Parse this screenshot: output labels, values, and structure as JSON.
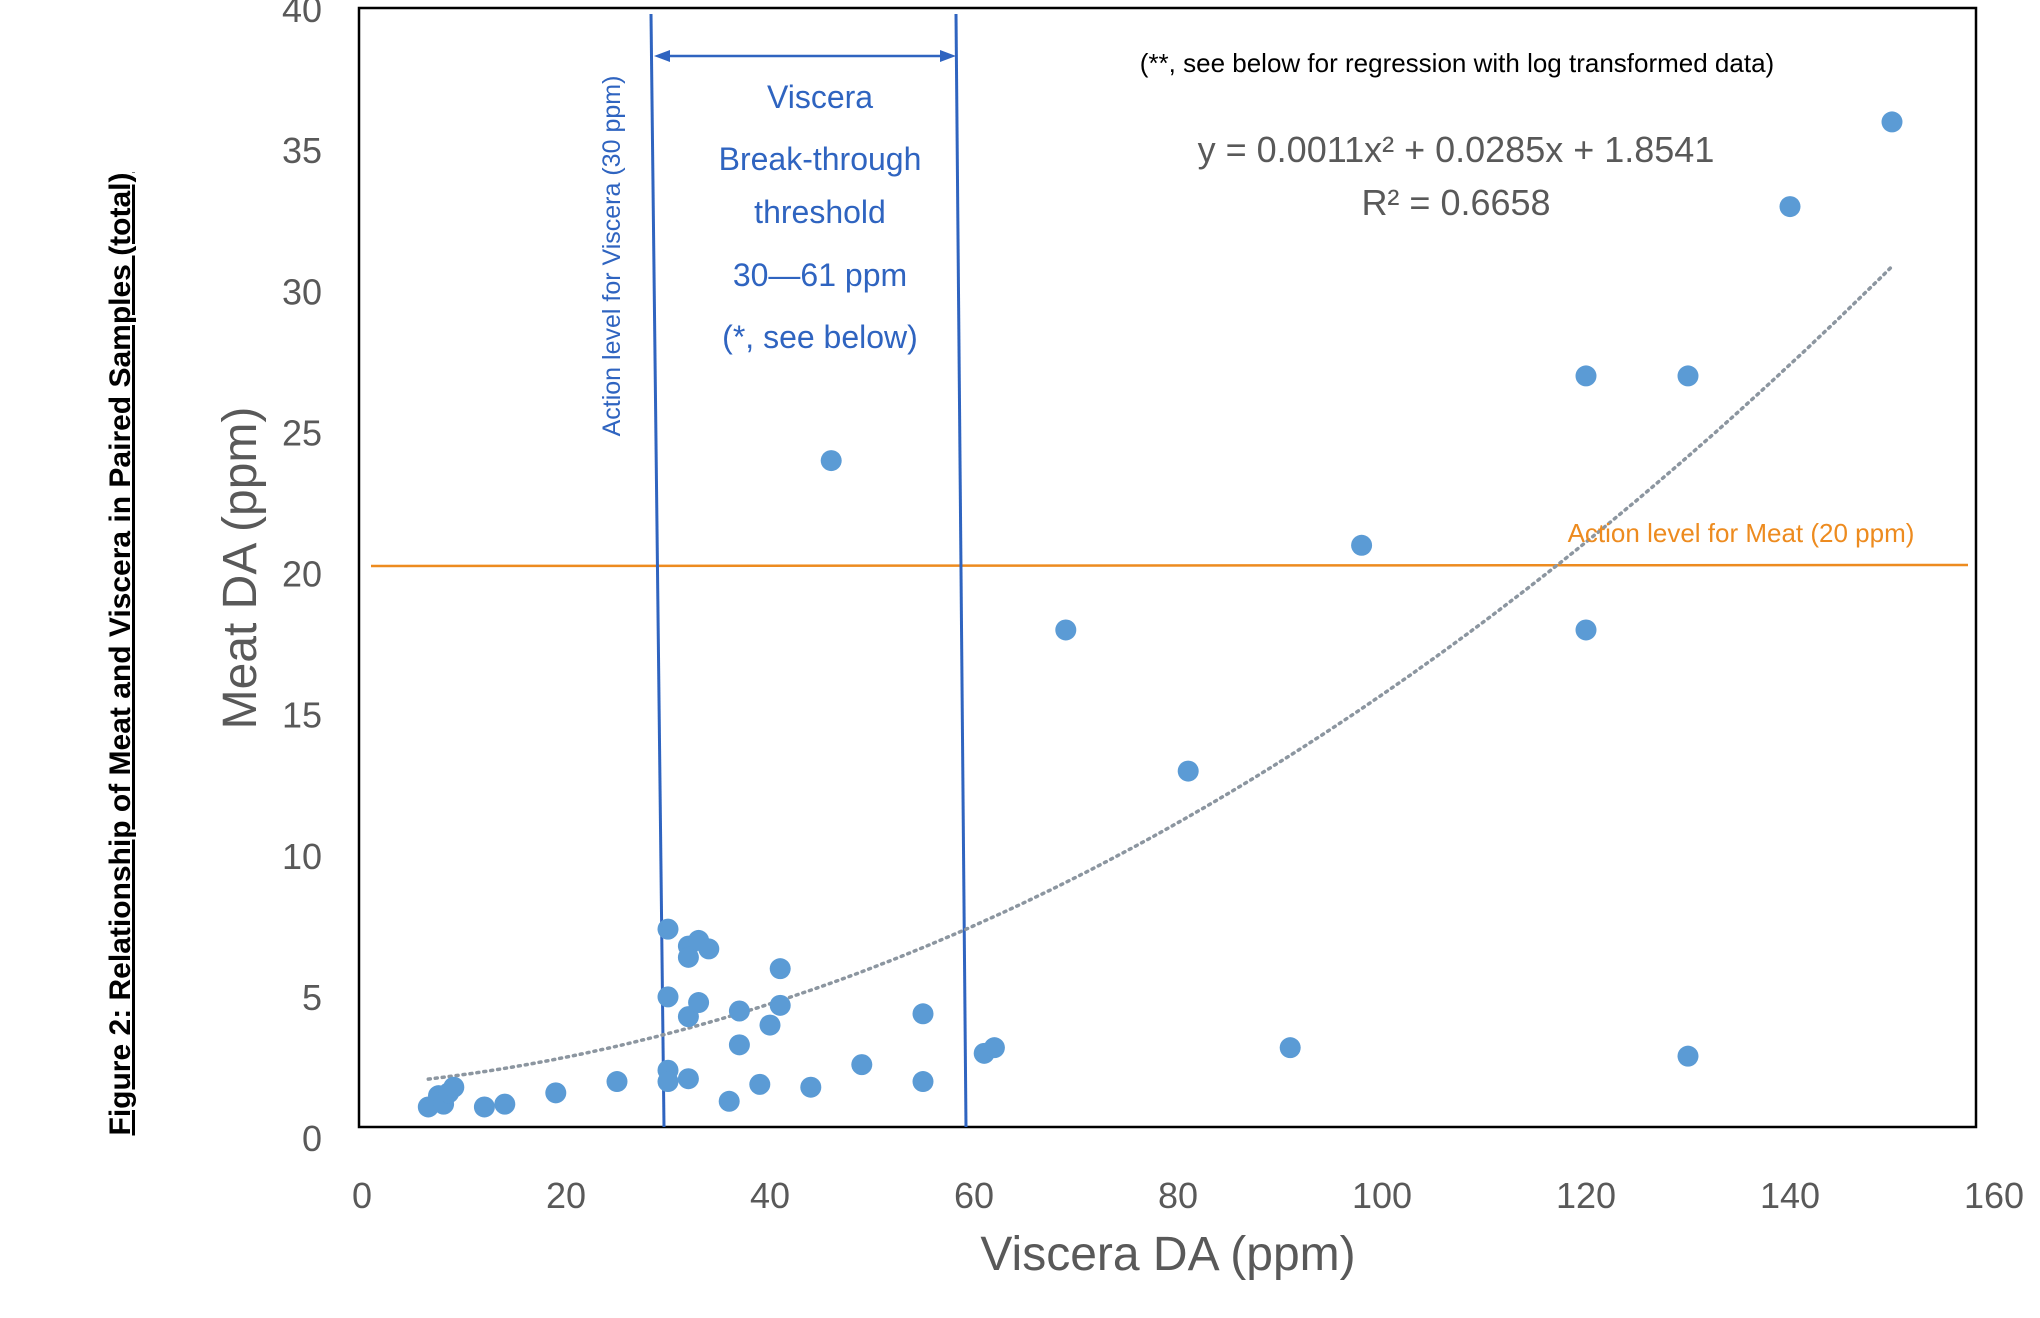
{
  "figure_title": "Figure 2: Relationship of Meat and Viscera in Paired Samples  (total)",
  "colors": {
    "points": "#5b9bd5",
    "blue_lines": "#2f64c0",
    "orange_line": "#ed8b1f",
    "trendline": "#8c96a0",
    "axis_text": "#595959"
  },
  "chart_data": {
    "type": "scatter",
    "xlabel": "Viscera DA (ppm)",
    "ylabel": "Meat DA (ppm)",
    "xlim": [
      0,
      160
    ],
    "ylim": [
      0,
      40
    ],
    "x_ticks": [
      "0",
      "20",
      "40",
      "60",
      "80",
      "100",
      "120",
      "140",
      "160"
    ],
    "y_ticks": [
      "0",
      "5",
      "10",
      "15",
      "20",
      "25",
      "30",
      "35",
      "40"
    ],
    "grid": false,
    "legend": "none",
    "series": [
      {
        "points": [
          [
            6.5,
            1.1
          ],
          [
            7.5,
            1.5
          ],
          [
            8,
            1.2
          ],
          [
            8.5,
            1.6
          ],
          [
            9,
            1.8
          ],
          [
            12,
            1.1
          ],
          [
            14,
            1.2
          ],
          [
            19,
            1.6
          ],
          [
            25,
            2.0
          ],
          [
            30,
            7.4
          ],
          [
            30,
            5.0
          ],
          [
            30,
            2.4
          ],
          [
            30,
            2.0
          ],
          [
            32,
            6.8
          ],
          [
            32,
            6.4
          ],
          [
            32,
            4.3
          ],
          [
            32,
            2.1
          ],
          [
            33,
            7.0
          ],
          [
            33,
            4.8
          ],
          [
            34,
            6.7
          ],
          [
            36,
            1.3
          ],
          [
            37,
            4.5
          ],
          [
            37,
            3.3
          ],
          [
            39,
            1.9
          ],
          [
            40,
            4.0
          ],
          [
            41,
            6.0
          ],
          [
            41,
            4.7
          ],
          [
            44,
            1.8
          ],
          [
            46,
            24.0
          ],
          [
            49,
            2.6
          ],
          [
            55,
            4.4
          ],
          [
            55,
            2.0
          ],
          [
            61,
            3.0
          ],
          [
            62,
            3.2
          ],
          [
            69,
            18.0
          ],
          [
            81,
            13.0
          ],
          [
            91,
            3.2
          ],
          [
            98,
            21.0
          ],
          [
            120,
            27.0
          ],
          [
            120,
            18.0
          ],
          [
            130,
            27.0
          ],
          [
            130,
            2.9
          ],
          [
            140,
            33.0
          ],
          [
            150,
            36.0
          ]
        ]
      }
    ],
    "trendline": {
      "type": "polynomial",
      "coefficients": [
        0.0011,
        0.0285,
        1.8541
      ],
      "x_range": [
        6.5,
        150
      ],
      "equation_label": "y = 0.0011x² + 0.0285x + 1.8541",
      "r2_label": "R² = 0.6658"
    },
    "reference_lines": {
      "viscera_action_x": 30,
      "viscera_upper_x": 60,
      "meat_action_y": 20
    },
    "annotations": {
      "viscera_action_label": "Action level for Viscera (30 ppm)",
      "meat_action_label": "Action level for Meat (20 ppm)",
      "threshold_lines": [
        "Viscera",
        "Break-through",
        "threshold",
        "30—61 ppm",
        "(*, see below)"
      ],
      "log_note": "(**, see below for regression with log transformed data)"
    }
  }
}
